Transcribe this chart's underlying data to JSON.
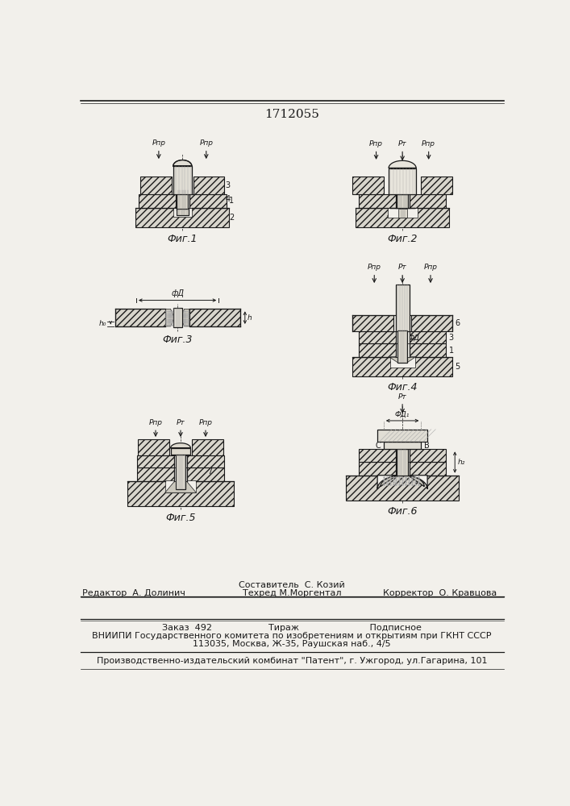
{
  "patent_number": "1712055",
  "bg_color": "#f2f0eb",
  "line_color": "#1a1a1a",
  "hatch_color": "#333333",
  "fill_metal": "#d8d5cc",
  "fill_rivet": "#e8e5dc",
  "fill_white": "#ffffff",
  "fig_labels": [
    "Фиг.1",
    "Фиг.2",
    "Фиг.3",
    "Фиг.4",
    "Фиг.5",
    "Фиг.6"
  ],
  "composer_line": "Составитель  С. Козий",
  "editor_line1": "Редактор  А. Долинич",
  "editor_line2": "Техред М.Моргентал",
  "editor_line3": "Корректор  О. Кравцова",
  "order_line": "Заказ  492                    Тираж                         Подписное",
  "vniip_line": "ВНИИПИ Государственного комитета по изобретениям и открытиям при ГКНТ СССР",
  "address_line": "113035, Москва, Ж-35, Раушская наб., 4/5",
  "publisher_line": "Производственно-издательский комбинат \"Патент\", г. Ужгород, ул.Гагарина, 101",
  "font_size_fig": 9,
  "font_size_small": 7,
  "font_size_title": 11,
  "font_size_text": 8
}
